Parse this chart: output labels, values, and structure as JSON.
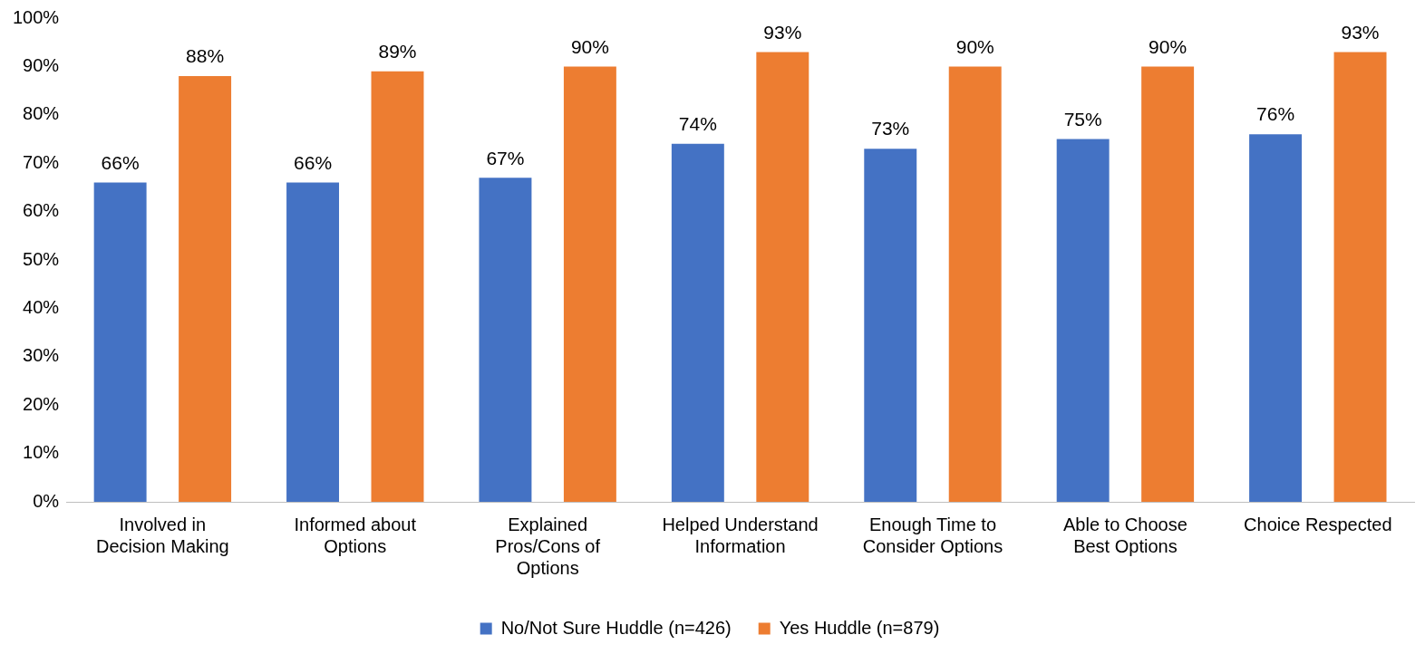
{
  "chart_data": {
    "type": "bar",
    "categories": [
      "Involved in Decision Making",
      "Informed about Options",
      "Explained Pros/Cons of Options",
      "Helped Understand Information",
      "Enough Time to Consider Options",
      "Able to Choose Best Options",
      "Choice Respected"
    ],
    "series": [
      {
        "name": "No/Not Sure Huddle (n=426)",
        "color": "#4472c4",
        "values": [
          66,
          66,
          67,
          74,
          73,
          75,
          76
        ],
        "value_labels": [
          "66%",
          "66%",
          "67%",
          "74%",
          "73%",
          "75%",
          "76%"
        ]
      },
      {
        "name": "Yes Huddle (n=879)",
        "color": "#ed7d31",
        "values": [
          88,
          89,
          90,
          93,
          90,
          90,
          93
        ],
        "value_labels": [
          "88%",
          "89%",
          "90%",
          "93%",
          "90%",
          "90%",
          "93%"
        ]
      }
    ],
    "ylim": [
      0,
      100
    ],
    "yticks": [
      {
        "value": 0,
        "label": "0%"
      },
      {
        "value": 10,
        "label": "10%"
      },
      {
        "value": 20,
        "label": "20%"
      },
      {
        "value": 30,
        "label": "30%"
      },
      {
        "value": 40,
        "label": "40%"
      },
      {
        "value": 50,
        "label": "50%"
      },
      {
        "value": 60,
        "label": "60%"
      },
      {
        "value": 70,
        "label": "70%"
      },
      {
        "value": 80,
        "label": "80%"
      },
      {
        "value": 90,
        "label": "90%"
      },
      {
        "value": 100,
        "label": "100%"
      }
    ],
    "legend": "bottom"
  }
}
